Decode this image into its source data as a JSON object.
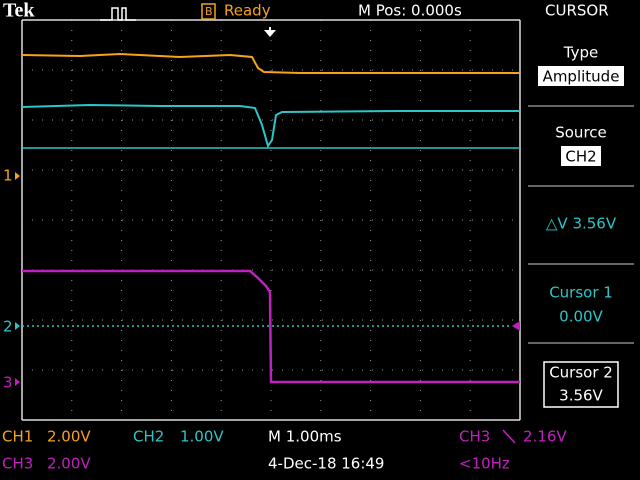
{
  "header": {
    "brand": "Tek",
    "status": "Ready",
    "position": "M Pos: 0.000s",
    "menu": "CURSOR"
  },
  "side_menu": {
    "type_label": "Type",
    "type_value": "Amplitude",
    "source_label": "Source",
    "source_value": "CH2",
    "delta": "△V 3.56V",
    "cursor1_label": "Cursor 1",
    "cursor1_value": "0.00V",
    "cursor2_label": "Cursor 2",
    "cursor2_value": "3.56V"
  },
  "markers": [
    "1",
    "2",
    "3"
  ],
  "footer": {
    "ch1": "CH1",
    "ch1_scale": "2.00V",
    "ch2": "CH2",
    "ch2_scale": "1.00V",
    "timebase": "M 1.00ms",
    "trigger_source": "CH3",
    "trigger_level": "2.16V",
    "ch3": "CH3",
    "ch3_scale": "2.00V",
    "date": "4-Dec-18 16:49",
    "freq": "<10Hz"
  }
}
